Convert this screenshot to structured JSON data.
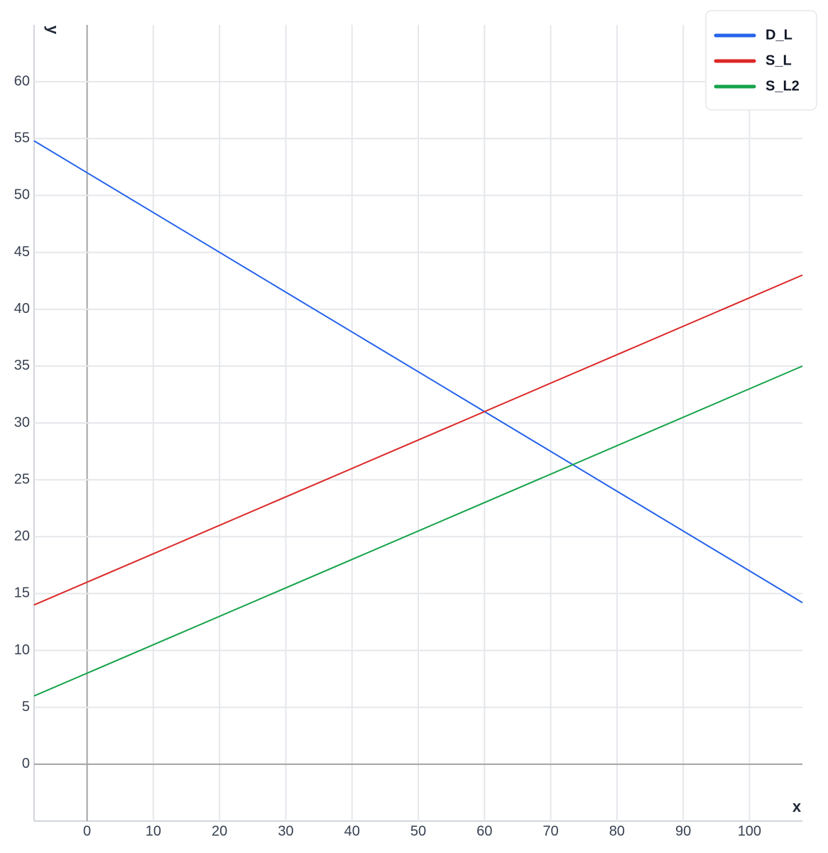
{
  "chart_data": {
    "type": "line",
    "x": [
      -8,
      108
    ],
    "series": [
      {
        "name": "D_L",
        "color": "#2563eb",
        "values": [
          54.8,
          14.2
        ]
      },
      {
        "name": "S_L",
        "color": "#dc2626",
        "values": [
          14,
          43
        ]
      },
      {
        "name": "S_L2",
        "color": "#16a34a",
        "values": [
          6,
          35
        ]
      }
    ],
    "x_label": "x",
    "y_label": "y",
    "xlim": [
      -8,
      108
    ],
    "ylim": [
      -5,
      65
    ],
    "xticks": [
      0,
      10,
      20,
      30,
      40,
      50,
      60,
      70,
      80,
      90,
      100
    ],
    "yticks": [
      0,
      5,
      10,
      15,
      20,
      25,
      30,
      35,
      40,
      45,
      50,
      55,
      60
    ],
    "grid": true,
    "legend": "top-right"
  }
}
